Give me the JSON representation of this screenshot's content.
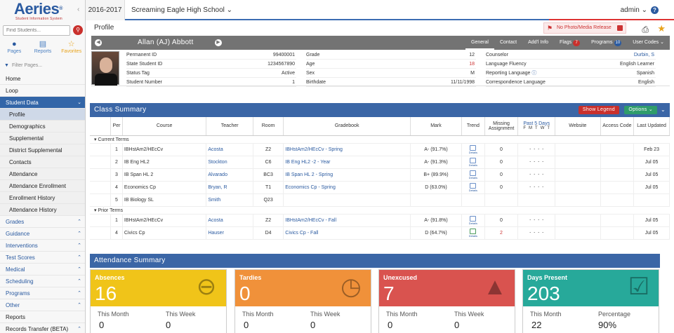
{
  "brand": {
    "name": "Aeries",
    "reg": "®",
    "sub": "Student Information System"
  },
  "search": {
    "placeholder": "Find Students..."
  },
  "sidebar_tabs": [
    "Pages",
    "Reports",
    "Favorites"
  ],
  "filter": {
    "placeholder": "Filter Pages..."
  },
  "nav": {
    "home": "Home",
    "loop": "Loop",
    "student_data": "Student Data",
    "sub": [
      "Profile",
      "Demographics",
      "Supplemental",
      "District Supplemental",
      "Contacts",
      "Attendance",
      "Attendance Enrollment",
      "Enrollment History",
      "Attendance History"
    ],
    "groups": [
      "Grades",
      "Guidance",
      "Interventions",
      "Test Scores",
      "Medical",
      "Scheduling",
      "Programs",
      "Other"
    ],
    "reports": "Reports",
    "records": "Records Transfer (BETA)"
  },
  "topbar": {
    "year": "2016-2017",
    "school": "Screaming Eagle High School",
    "user": "admin",
    "help": "?"
  },
  "profile": {
    "title": "Profile",
    "no_photo": "No Photo/Media Release",
    "student_name": "Allan (AJ) Abbott",
    "tabs": [
      {
        "label": "General",
        "badge": ""
      },
      {
        "label": "Contact",
        "badge": ""
      },
      {
        "label": "Add'l Info",
        "badge": ""
      },
      {
        "label": "Flags",
        "badge": "7"
      },
      {
        "label": "Programs",
        "badge": "10"
      },
      {
        "label": "User Codes",
        "badge": ""
      }
    ],
    "col1": [
      {
        "k": "Permanent ID",
        "v": "99400001"
      },
      {
        "k": "State Student ID",
        "v": "1234567890"
      },
      {
        "k": "Status Tag",
        "v": "Active"
      },
      {
        "k": "Student Number",
        "v": "1"
      }
    ],
    "col2": [
      {
        "k": "Grade",
        "v": "12"
      },
      {
        "k": "Age",
        "v": "18"
      },
      {
        "k": "Sex",
        "v": "M"
      },
      {
        "k": "Birthdate",
        "v": "11/11/1998"
      }
    ],
    "col3": [
      {
        "k": "Counselor",
        "v": "Durbin, S"
      },
      {
        "k": "Language Fluency",
        "v": "English Learner"
      },
      {
        "k": "Reporting Language",
        "v": "Spanish"
      },
      {
        "k": "Correspondence Language",
        "v": "English"
      }
    ]
  },
  "class_summary": {
    "title": "Class Summary",
    "show_legend": "Show Legend",
    "options": "Options",
    "headers": {
      "per": "Per",
      "course": "Course",
      "teacher": "Teacher",
      "room": "Room",
      "gradebook": "Gradebook",
      "mark": "Mark",
      "trend": "Trend",
      "missing": "Missing Assignment",
      "past5": "Past 5 Days",
      "days": [
        "F",
        "M",
        "T",
        "W",
        "T"
      ],
      "website": "Website",
      "access": "Access Code",
      "updated": "Last Updated"
    },
    "trend_label": "Details",
    "current_label": "Current Terms",
    "prior_label": "Prior Terms",
    "current": [
      {
        "per": "1",
        "course": "IBHstAm2/HEcCv",
        "teacher": "Acosta",
        "room": "Z2",
        "gradebook": "IBHstAm2/HEcCv - Spring",
        "mark": "A- (91.7%)",
        "missing": "0",
        "updated": "Feb 23"
      },
      {
        "per": "2",
        "course": "IB Eng HL2",
        "teacher": "Stockton",
        "room": "C6",
        "gradebook": "IB Eng HL2 -2 - Year",
        "mark": "A- (91.3%)",
        "missing": "0",
        "updated": "Jul 05"
      },
      {
        "per": "3",
        "course": "IB Span HL 2",
        "teacher": "Alvarado",
        "room": "BC3",
        "gradebook": "IB Span HL 2 - Spring",
        "mark": "B+ (89.9%)",
        "missing": "0",
        "updated": "Jul 05"
      },
      {
        "per": "4",
        "course": "Economics Cp",
        "teacher": "Bryan, R",
        "room": "T1",
        "gradebook": "Economics Cp - Spring",
        "mark": "D (63.0%)",
        "missing": "0",
        "updated": "Jul 05"
      },
      {
        "per": "5",
        "course": "IB Biology SL",
        "teacher": "Smith",
        "room": "Q23",
        "gradebook": "",
        "mark": "",
        "missing": "",
        "updated": ""
      }
    ],
    "prior": [
      {
        "per": "1",
        "course": "IBHstAm2/HEcCv",
        "teacher": "Acosta",
        "room": "Z2",
        "gradebook": "IBHstAm2/HEcCv - Fall",
        "mark": "A- (91.8%)",
        "missing": "0",
        "updated": "Jul 05"
      },
      {
        "per": "4",
        "course": "Civics Cp",
        "teacher": "Hauser",
        "room": "D4",
        "gradebook": "Civics Cp - Fall",
        "mark": "D (64.7%)",
        "missing": "2",
        "updated": "Jul 05"
      }
    ],
    "dash": "-"
  },
  "attendance": {
    "title": "Attendance Summary",
    "tiles": [
      {
        "title": "Absences",
        "value": "16",
        "l1": "This Month",
        "v1": "0",
        "l2": "This Week",
        "v2": "0",
        "color": "#f0c419"
      },
      {
        "title": "Tardies",
        "value": "0",
        "l1": "This Month",
        "v1": "0",
        "l2": "This Week",
        "v2": "0",
        "color": "#f0913a"
      },
      {
        "title": "Unexcused",
        "value": "7",
        "l1": "This Month",
        "v1": "0",
        "l2": "This Week",
        "v2": "0",
        "color": "#d9534f"
      },
      {
        "title": "Days Present",
        "value": "203",
        "l1": "This Month",
        "v1": "22",
        "l2": "Percentage",
        "v2": "90%",
        "color": "#27a99a"
      }
    ]
  }
}
